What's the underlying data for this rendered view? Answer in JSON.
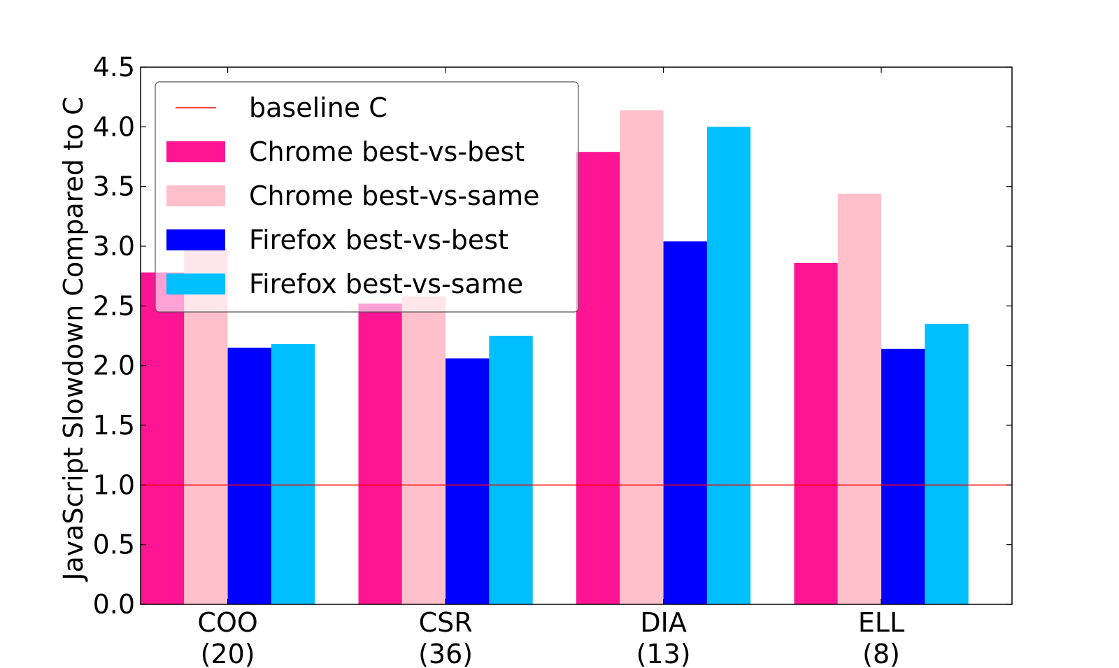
{
  "chart_data": {
    "type": "bar",
    "categories": [
      "COO",
      "CSR",
      "DIA",
      "ELL"
    ],
    "category_counts": [
      "(20)",
      "(36)",
      "(13)",
      "(8)"
    ],
    "series": [
      {
        "name": "Chrome best-vs-best",
        "values": [
          2.78,
          2.52,
          3.79,
          2.86
        ],
        "color": "#ff1493"
      },
      {
        "name": "Chrome best-vs-same",
        "values": [
          2.98,
          2.58,
          4.14,
          3.44
        ],
        "color": "#ffc0cb"
      },
      {
        "name": "Firefox best-vs-best",
        "values": [
          2.15,
          2.06,
          3.04,
          2.14
        ],
        "color": "#0000ff"
      },
      {
        "name": "Firefox best-vs-same",
        "values": [
          2.18,
          2.25,
          4.0,
          2.35
        ],
        "color": "#00bfff"
      }
    ],
    "baseline": {
      "name": "baseline C",
      "value": 1.0,
      "color": "#ff0000"
    },
    "title": "",
    "xlabel": "",
    "ylabel": "JavaScript Slowdown Compared to C",
    "ylim": [
      0,
      4.5
    ],
    "yticks": [
      "0.0",
      "0.5",
      "1.0",
      "1.5",
      "2.0",
      "2.5",
      "3.0",
      "3.5",
      "4.0",
      "4.5"
    ],
    "legend_position": "top-left",
    "grid": false
  }
}
